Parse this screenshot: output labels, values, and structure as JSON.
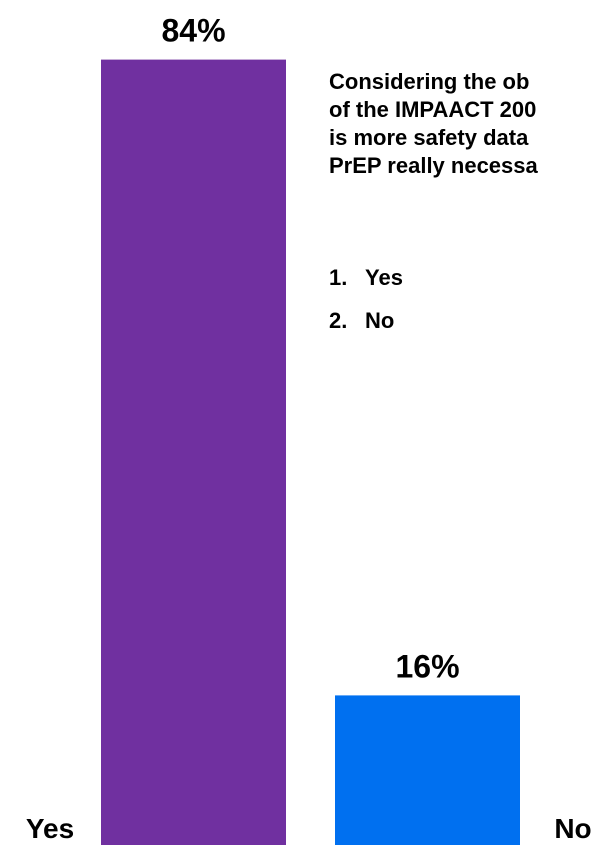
{
  "question": {
    "lines": [
      "Considering the ob",
      "of the IMPAACT 200",
      "is more safety data",
      "PrEP really necessa"
    ]
  },
  "options": [
    {
      "number": "1.",
      "label": "Yes"
    },
    {
      "number": "2.",
      "label": "No"
    }
  ],
  "chart_data": {
    "type": "bar",
    "categories": [
      "Yes",
      "No"
    ],
    "values": [
      84,
      16
    ],
    "value_labels": [
      "84%",
      "16%"
    ],
    "colors": [
      "#7030A0",
      "#0070F0"
    ],
    "ylim": [
      0,
      100
    ],
    "grid": false,
    "title": "",
    "xlabel": "",
    "ylabel": ""
  }
}
